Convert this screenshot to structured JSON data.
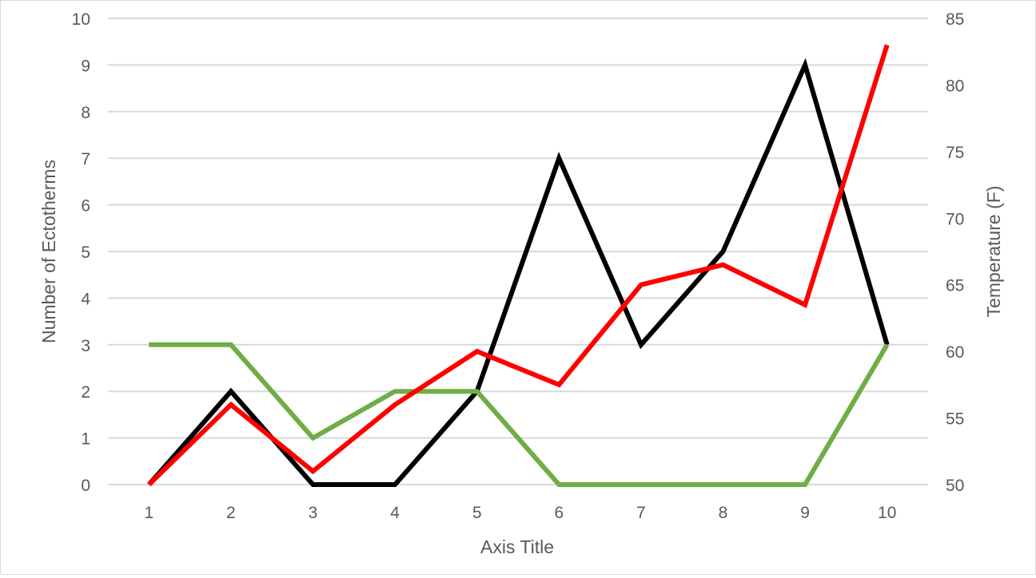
{
  "chart_data": {
    "type": "line",
    "title": "",
    "xlabel": "Axis Title",
    "ylabel": "Number of Ectotherms",
    "y2label": "Temperature (F)",
    "x": [
      1,
      2,
      3,
      4,
      5,
      6,
      7,
      8,
      9,
      10
    ],
    "ylim": [
      0,
      10
    ],
    "y2lim": [
      50,
      85
    ],
    "yticks": [
      0,
      1,
      2,
      3,
      4,
      5,
      6,
      7,
      8,
      9,
      10
    ],
    "y2ticks": [
      50,
      55,
      60,
      65,
      70,
      75,
      80,
      85
    ],
    "grid": true,
    "legend": "none",
    "series": [
      {
        "color": "#000000",
        "axis": "left",
        "values": [
          0,
          2,
          0,
          0,
          2,
          7,
          3,
          5,
          9,
          3
        ]
      },
      {
        "color": "#70ad47",
        "axis": "left",
        "values": [
          3,
          3,
          1,
          2,
          2,
          0,
          0,
          0,
          0,
          3
        ]
      },
      {
        "color": "#ff0000",
        "axis": "right",
        "values": [
          50,
          56,
          51,
          56,
          60,
          57.5,
          65,
          66.5,
          63.5,
          83
        ]
      }
    ]
  }
}
